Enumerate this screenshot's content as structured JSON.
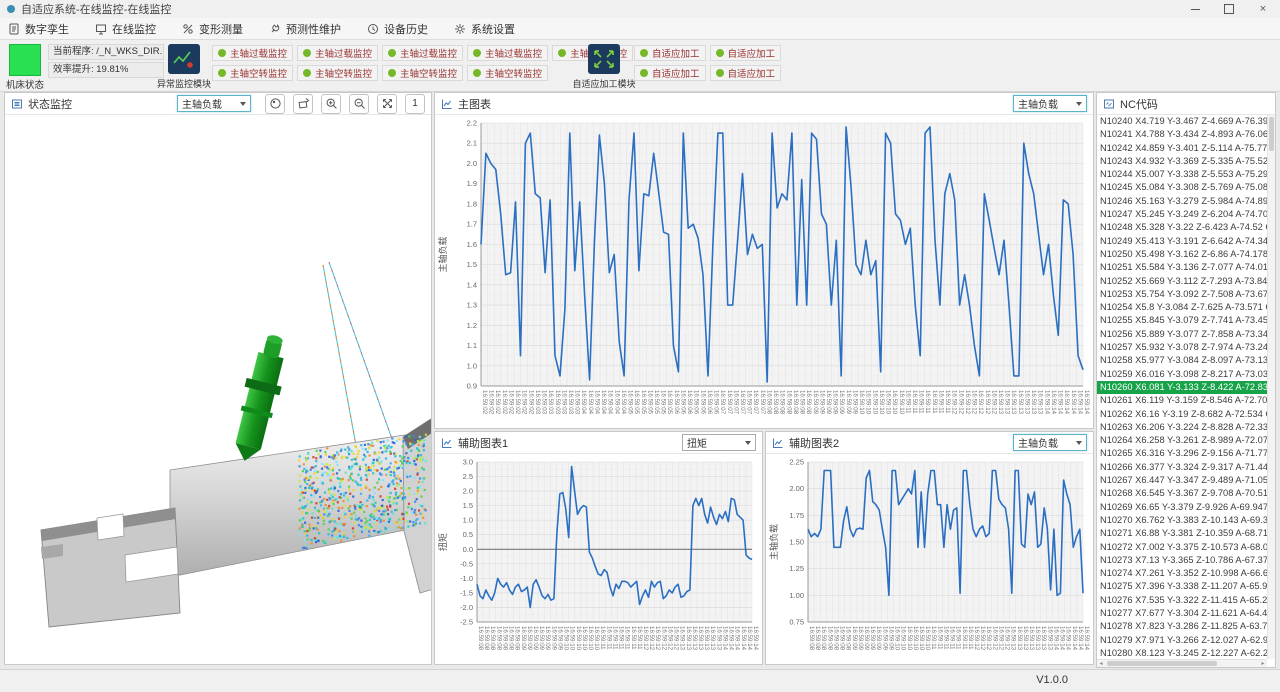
{
  "window": {
    "title": "自适应系统-在线监控-在线监控",
    "version": "V1.0.0"
  },
  "menu": {
    "items": [
      {
        "label": "数字孪生",
        "icon": "digital-twin"
      },
      {
        "label": "在线监控",
        "icon": "online-monitor"
      },
      {
        "label": "变形测量",
        "icon": "deformation-measure"
      },
      {
        "label": "预测性维护",
        "icon": "predictive-maintenance"
      },
      {
        "label": "设备历史",
        "icon": "device-history"
      },
      {
        "label": "系统设置",
        "icon": "system-settings"
      }
    ]
  },
  "toolbar": {
    "machine_status_label": "机床状态",
    "current_program": "当前程序: /_N_WKS_DIR...",
    "efficiency": "效率提升: 19.81%",
    "abnormal_module_label": "异常监控模块",
    "adaptive_module_label": "自适应加工模块",
    "overload_buttons": [
      "主轴过载监控",
      "主轴过载监控",
      "主轴过载监控",
      "主轴过载监控",
      "主轴过载监控"
    ],
    "idle_buttons": [
      "主轴空转监控",
      "主轴空转监控",
      "主轴空转监控",
      "主轴空转监控"
    ],
    "adaptive_buttons_row1": [
      "自适应加工",
      "自适应加工"
    ],
    "adaptive_buttons_row2": [
      "自适应加工",
      "自适应加工"
    ]
  },
  "left_panel": {
    "title": "状态监控",
    "dropdown": "主轴负载",
    "view_number": "1"
  },
  "main_chart_panel": {
    "title": "主图表",
    "dropdown": "主轴负载"
  },
  "aux1_panel": {
    "title": "辅助图表1",
    "dropdown": "扭矩"
  },
  "aux2_panel": {
    "title": "辅助图表2",
    "dropdown": "主轴负载"
  },
  "nc_panel": {
    "title": "NC代码",
    "highlight_index": 20,
    "lines": [
      "N10240 X4.719 Y-3.467 Z-4.669 A-76.396",
      "N10241 X4.788 Y-3.434 Z-4.893 A-76.062",
      "N10242 X4.859 Y-3.401 Z-5.114 A-75.775",
      "N10243 X4.932 Y-3.369 Z-5.335 A-75.523",
      "N10244 X5.007 Y-3.338 Z-5.553 A-75.297",
      "N10245 X5.084 Y-3.308 Z-5.769 A-75.088",
      "N10246 X5.163 Y-3.279 Z-5.984 A-74.892",
      "N10247 X5.245 Y-3.249 Z-6.204 A-74.701",
      "N10248 X5.328 Y-3.22 Z-6.423 A-74.52 C",
      "N10249 X5.413 Y-3.191 Z-6.642 A-74.346",
      "N10250 X5.498 Y-3.162 Z-6.86 A-74.178 C",
      "N10251 X5.584 Y-3.136 Z-7.077 A-74.012",
      "N10252 X5.669 Y-3.112 Z-7.293 A-73.844",
      "N10253 X5.754 Y-3.092 Z-7.508 A-73.677",
      "N10254 X5.8 Y-3.084 Z-7.625 A-73.571 C",
      "N10255 X5.845 Y-3.079 Z-7.741 A-73.458",
      "N10256 X5.889 Y-3.077 Z-7.858 A-73.348",
      "N10257 X5.932 Y-3.078 Z-7.974 A-73.243",
      "N10258 X5.977 Y-3.084 Z-8.097 A-73.138",
      "N10259 X6.016 Y-3.098 Z-8.217 A-73.036",
      "N10260 X6.081 Y-3.133 Z-8.422 A-72.835",
      "N10261 X6.119 Y-3.159 Z-8.546 A-72.701",
      "N10262 X6.16 Y-3.19 Z-8.682 A-72.534 C",
      "N10263 X6.206 Y-3.224 Z-8.828 A-72.33 C",
      "N10264 X6.258 Y-3.261 Z-8.989 A-72.072",
      "N10265 X6.316 Y-3.296 Z-9.156 A-71.771",
      "N10266 X6.377 Y-3.324 Z-9.317 A-71.443",
      "N10267 X6.447 Y-3.347 Z-9.489 A-71.055",
      "N10268 X6.545 Y-3.367 Z-9.708 A-70.519",
      "N10269 X6.65 Y-3.379 Z-9.926 A-69.947 C",
      "N10270 X6.762 Y-3.383 Z-10.143 A-69.34",
      "N10271 X6.88 Y-3.381 Z-10.359 A-68.711",
      "N10272 X7.002 Y-3.375 Z-10.573 A-68.05",
      "N10273 X7.13 Y-3.365 Z-10.786 A-67.372",
      "N10274 X7.261 Y-3.352 Z-10.998 A-66.67",
      "N10275 X7.396 Y-3.338 Z-11.207 A-65.95",
      "N10276 X7.535 Y-3.322 Z-11.415 A-65.22",
      "N10277 X7.677 Y-3.304 Z-11.621 A-64.48",
      "N10278 X7.823 Y-3.286 Z-11.825 A-63.73",
      "N10279 X7.971 Y-3.266 Z-12.027 A-62.98",
      "N10280 X8.123 Y-3.245 Z-12.227 A-62.23"
    ]
  },
  "colors": {
    "machine_status_green": "#29e052",
    "status_dot_green": "#76b82a",
    "button_text_red": "#993333",
    "module_navy": "#1c3a5e",
    "chart_line_blue": "#2b6fc2",
    "nc_highlight_green": "#17a34a"
  },
  "chart_data": [
    {
      "id": "main",
      "type": "line",
      "title": "主图表",
      "ylabel": "主轴负载",
      "xlabel": "",
      "ylim": [
        0.9,
        2.2
      ],
      "ytick": 0.1,
      "y_decimals": 1,
      "grid": true,
      "legend": "none",
      "x_ticks": [
        "16:59:02",
        "16:59:03",
        "16:59:04",
        "16:59:05",
        "16:59:06",
        "16:59:07",
        "16:59:08",
        "16:59:09",
        "16:59:10",
        "16:59:11",
        "16:59:12",
        "16:59:13",
        "16:59:14"
      ],
      "x_label_count": 92,
      "zero_line": false,
      "values": [
        1.6,
        2.05,
        2.0,
        1.97,
        1.75,
        1.45,
        1.46,
        1.81,
        1.05,
        2.1,
        2.15,
        1.85,
        1.83,
        1.46,
        1.82,
        1.05,
        0.95,
        1.28,
        2.15,
        1.47,
        1.81,
        1.35,
        0.93,
        1.62,
        2.14,
        1.9,
        1.46,
        1.55,
        1.12,
        0.95,
        1.82,
        2.15,
        1.47,
        1.85,
        1.84,
        2.05,
        1.86,
        1.66,
        1.65,
        1.1,
        0.97,
        2.15,
        1.68,
        1.7,
        1.63,
        1.45,
        0.95,
        1.6,
        2.15,
        2.15,
        1.3,
        1.3,
        1.62,
        1.95,
        1.55,
        1.65,
        1.58,
        1.6,
        0.92,
        2.15,
        1.78,
        1.85,
        1.82,
        2.15,
        1.3,
        1.92,
        1.3,
        2.15,
        2.12,
        1.75,
        1.7,
        1.3,
        1.62,
        0.95,
        2.18,
        1.88,
        1.5,
        1.45,
        1.62,
        1.45,
        1.52,
        0.97,
        2.15,
        2.1,
        1.75,
        1.72,
        1.6,
        1.68,
        1.3,
        1.05,
        2.15,
        2.18,
        1.62,
        1.3,
        1.85,
        1.95,
        1.82,
        1.3,
        1.45,
        1.3,
        1.1,
        0.95,
        1.85,
        1.72,
        1.58,
        1.45,
        1.62,
        1.3,
        0.95,
        0.95,
        2.1,
        1.95,
        1.85,
        1.65,
        1.45,
        1.6,
        1.35,
        1.15,
        1.82,
        1.8,
        1.55,
        1.05,
        0.98
      ]
    },
    {
      "id": "aux1",
      "type": "line",
      "title": "辅助图表1",
      "ylabel": "扭矩",
      "xlabel": "",
      "ylim": [
        -2.5,
        3.0
      ],
      "ytick": 0.5,
      "y_decimals": 1,
      "grid": true,
      "legend": "none",
      "x_ticks": [
        "16:59:08",
        "16:59:09",
        "16:59:10",
        "16:59:11",
        "16:59:12",
        "16:59:13",
        "16:59:14"
      ],
      "x_label_count": 46,
      "zero_line": true,
      "values": [
        -1.2,
        -1.6,
        -1.7,
        -1.4,
        -1.6,
        -1.75,
        -1.5,
        -1.0,
        -1.2,
        -1.3,
        -1.15,
        -1.4,
        -1.55,
        -1.3,
        -1.2,
        -1.45,
        -1.4,
        -1.3,
        -2.0,
        -1.2,
        -1.05,
        -1.3,
        -1.6,
        -1.7,
        -1.55,
        -1.75,
        -1.7,
        0.5,
        1.9,
        1.95,
        1.4,
        0.4,
        2.85,
        2.0,
        1.2,
        1.4,
        1.5,
        1.45,
        -0.1,
        -0.3,
        -0.6,
        -0.85,
        -0.9,
        -0.7,
        -0.8,
        -1.3,
        -1.6,
        -1.2,
        -1.35,
        -1.1,
        -1.1,
        -1.15,
        -1.3,
        -1.2,
        -1.1,
        -1.9,
        -1.6,
        -1.4,
        -1.65,
        -1.1,
        -1.3,
        -1.15,
        -1.1,
        -1.7,
        -1.6,
        -1.4,
        -1.5,
        -1.3,
        -1.2,
        -1.65,
        -1.6,
        -1.45,
        -1.4,
        1.5,
        1.75,
        1.5,
        1.75,
        1.2,
        0.9,
        1.45,
        1.1,
        0.85,
        1.2,
        1.05,
        1.3,
        0.95,
        1.75,
        1.7,
        1.2,
        1.1,
        1.0,
        -0.2,
        -0.3,
        -0.35
      ]
    },
    {
      "id": "aux2",
      "type": "line",
      "title": "辅助图表2",
      "ylabel": "主轴负载",
      "xlabel": "",
      "ylim": [
        0.75,
        2.25
      ],
      "ytick": 0.25,
      "y_decimals": 2,
      "grid": true,
      "legend": "none",
      "x_ticks": [
        "16:59:08",
        "16:59:09",
        "16:59:10",
        "16:59:11",
        "16:59:12",
        "16:59:13",
        "16:59:14"
      ],
      "x_label_count": 46,
      "zero_line": false,
      "values": [
        1.62,
        1.55,
        1.58,
        1.55,
        1.62,
        2.17,
        2.17,
        2.17,
        1.45,
        1.45,
        1.45,
        1.7,
        1.83,
        1.62,
        1.55,
        1.62,
        1.63,
        1.62,
        2.1,
        2.17,
        1.88,
        1.85,
        1.8,
        1.62,
        1.45,
        1.0,
        2.17,
        2.17,
        1.85,
        1.9,
        1.95,
        2.0,
        1.95,
        2.17,
        1.45,
        1.97,
        1.45,
        1.95,
        2.17,
        2.17,
        1.85,
        1.85,
        1.45,
        1.85,
        1.62,
        1.8,
        1.82,
        1.02,
        2.17,
        2.17,
        1.85,
        1.62,
        1.55,
        1.62,
        1.65,
        1.55,
        1.58,
        2.17,
        2.17,
        1.9,
        1.85,
        1.82,
        1.62,
        1.02,
        2.17,
        2.17,
        1.48,
        1.45,
        1.95,
        1.85,
        1.97,
        1.45,
        1.48,
        1.82,
        1.62,
        1.05,
        1.62,
        1.0,
        1.02,
        2.08,
        1.95,
        1.85,
        1.45,
        1.55,
        1.62,
        1.02
      ]
    }
  ]
}
